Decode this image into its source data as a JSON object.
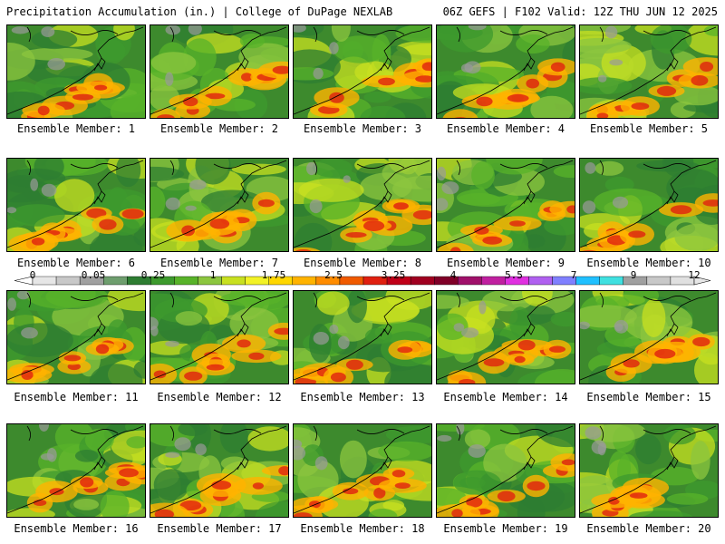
{
  "header": {
    "title": "Precipitation Accumulation (in.) | College of DuPage NEXLAB",
    "run_info": "06Z GEFS | F102 Valid: 12Z THU JUN 12 2025"
  },
  "panels": [
    {
      "label": "Ensemble Member: 1"
    },
    {
      "label": "Ensemble Member: 2"
    },
    {
      "label": "Ensemble Member: 3"
    },
    {
      "label": "Ensemble Member: 4"
    },
    {
      "label": "Ensemble Member: 5"
    },
    {
      "label": "Ensemble Member: 6"
    },
    {
      "label": "Ensemble Member: 7"
    },
    {
      "label": "Ensemble Member: 8"
    },
    {
      "label": "Ensemble Member: 9"
    },
    {
      "label": "Ensemble Member: 10"
    },
    {
      "label": "Ensemble Member: 11"
    },
    {
      "label": "Ensemble Member: 12"
    },
    {
      "label": "Ensemble Member: 13"
    },
    {
      "label": "Ensemble Member: 14"
    },
    {
      "label": "Ensemble Member: 15"
    },
    {
      "label": "Ensemble Member: 16"
    },
    {
      "label": "Ensemble Member: 17"
    },
    {
      "label": "Ensemble Member: 18"
    },
    {
      "label": "Ensemble Member: 19"
    },
    {
      "label": "Ensemble Member: 20"
    }
  ],
  "colorbar": {
    "ticks": [
      "0",
      "0.05",
      "0.25",
      "1",
      "1.75",
      "2.5",
      "3.25",
      "4",
      "5.5",
      "7",
      "9",
      "12"
    ],
    "colors": [
      "#e6e6e6",
      "#c8c8c8",
      "#a0a0a0",
      "#6e9e6e",
      "#2e7d32",
      "#3d9a2d",
      "#58b329",
      "#8cc63f",
      "#c8e020",
      "#f2f226",
      "#ffd700",
      "#ffb300",
      "#ff8c00",
      "#f05a00",
      "#e02010",
      "#c00018",
      "#a00020",
      "#800028",
      "#a0106a",
      "#c020a0",
      "#e030e0",
      "#b060f0",
      "#8080ff",
      "#20c0ff",
      "#40e0e0",
      "#a0a0a0",
      "#c8c8c8",
      "#e0e0e0"
    ]
  }
}
